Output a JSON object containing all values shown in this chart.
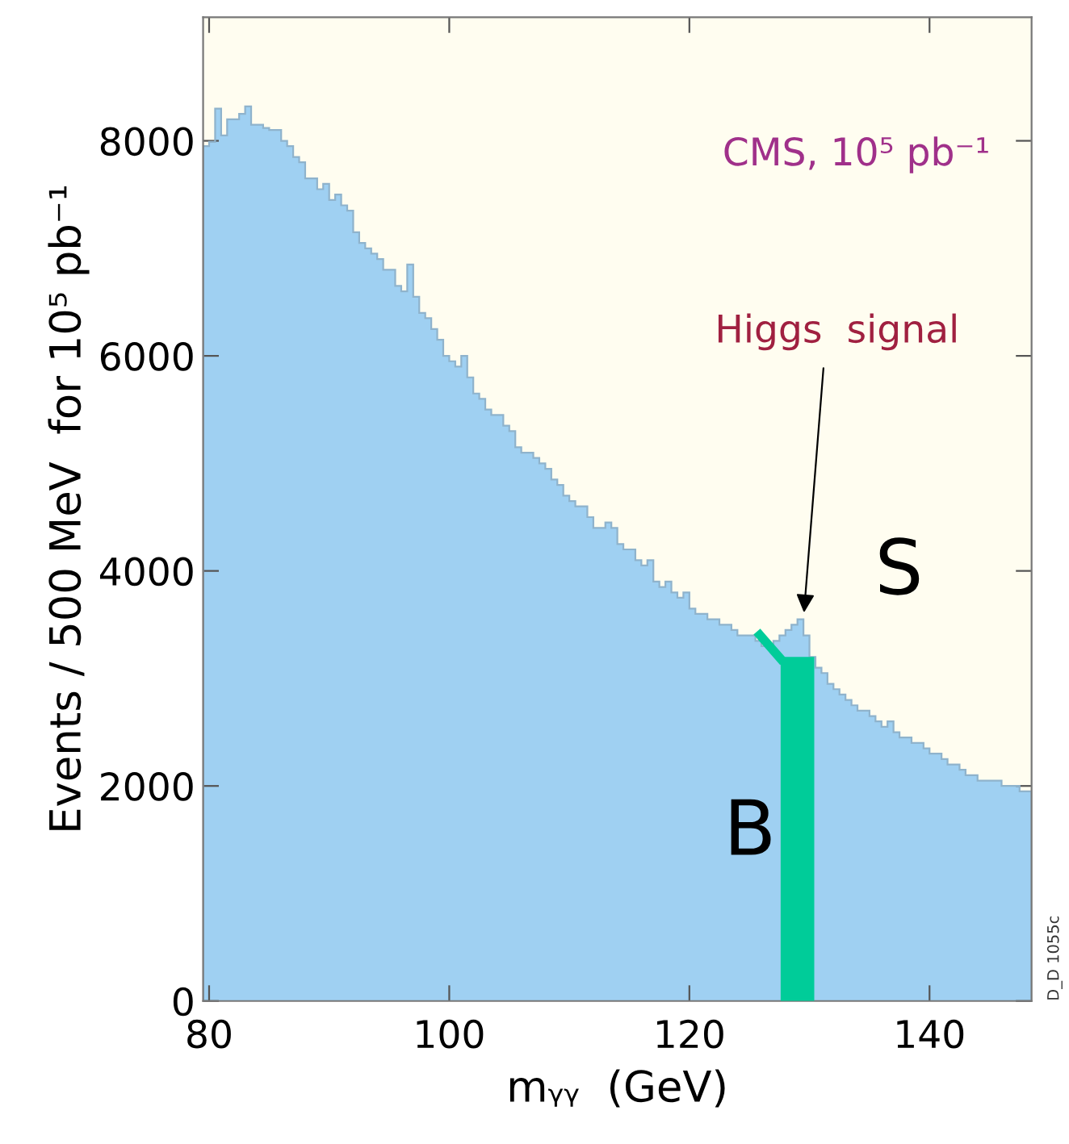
{
  "chart_data": {
    "type": "histogram",
    "xlabel": "mᵧᵧ  (GeV)",
    "ylabel": "Events / 500 MeV  for 10⁵ pb⁻¹",
    "bins": [
      79.5,
      80,
      80.5,
      81,
      81.5,
      82,
      82.5,
      83,
      83.5,
      84,
      84.5,
      85,
      85.5,
      86,
      86.5,
      87,
      87.5,
      88,
      88.5,
      89,
      89.5,
      90,
      90.5,
      91,
      91.5,
      92,
      92.5,
      93,
      93.5,
      94,
      94.5,
      95,
      95.5,
      96,
      96.5,
      97,
      97.5,
      98,
      98.5,
      99,
      99.5,
      100,
      100.5,
      101,
      101.5,
      102,
      102.5,
      103,
      103.5,
      104,
      104.5,
      105,
      105.5,
      106,
      106.5,
      107,
      107.5,
      108,
      108.5,
      109,
      109.5,
      110,
      110.5,
      111,
      111.5,
      112,
      112.5,
      113,
      113.5,
      114,
      114.5,
      115,
      115.5,
      116,
      116.5,
      117,
      117.5,
      118,
      118.5,
      119,
      119.5,
      120,
      120.5,
      121,
      121.5,
      122,
      122.5,
      123,
      123.5,
      124,
      124.5,
      125,
      125.5,
      126,
      126.5,
      127,
      127.5,
      128,
      128.5,
      129,
      129.5,
      130,
      130.5,
      131,
      131.5,
      132,
      132.5,
      133,
      133.5,
      134,
      134.5,
      135,
      135.5,
      136,
      136.5,
      137,
      137.5,
      138,
      138.5,
      139,
      139.5,
      140,
      140.5,
      141,
      141.5,
      142,
      142.5,
      143,
      143.5,
      144,
      144.5,
      145,
      145.5,
      146,
      146.5,
      147,
      147.5,
      148,
      148.5
    ],
    "series": [
      {
        "color": "#9fd0f2",
        "values": [
          7950,
          7990,
          8300,
          8050,
          8200,
          8200,
          8250,
          8320,
          8150,
          8150,
          8120,
          8100,
          8100,
          8000,
          7950,
          7850,
          7800,
          7650,
          7650,
          7550,
          7600,
          7450,
          7500,
          7400,
          7350,
          7150,
          7050,
          7000,
          6950,
          6900,
          6800,
          6800,
          6650,
          6600,
          6850,
          6550,
          6400,
          6350,
          6250,
          6150,
          6000,
          5950,
          5900,
          6000,
          5800,
          5650,
          5600,
          5500,
          5450,
          5450,
          5350,
          5300,
          5150,
          5100,
          5100,
          5050,
          5000,
          4950,
          4850,
          4800,
          4700,
          4650,
          4600,
          4600,
          4500,
          4400,
          4400,
          4450,
          4400,
          4250,
          4200,
          4200,
          4100,
          4050,
          4100,
          3900,
          3850,
          3900,
          3800,
          3750,
          3800,
          3650,
          3600,
          3600,
          3550,
          3550,
          3500,
          3500,
          3450,
          3400,
          3400,
          3400,
          3350,
          3300,
          3300,
          3350,
          3400,
          3450,
          3500,
          3550,
          3400,
          3200,
          3100,
          3050,
          2950,
          2900,
          2850,
          2800,
          2750,
          2700,
          2700,
          2650,
          2600,
          2550,
          2600,
          2500,
          2450,
          2450,
          2400,
          2400,
          2350,
          2300,
          2300,
          2250,
          2200,
          2200,
          2150,
          2100,
          2100,
          2050,
          2050,
          2050,
          2050,
          2000,
          2000,
          2000,
          1950,
          1950
        ]
      },
      {
        "type": "bar",
        "color": "#00cc99",
        "x": [
          129.0
        ],
        "values": [
          3200
        ]
      }
    ],
    "xlim": [
      79.5,
      148.5
    ],
    "ylim": [
      0,
      9150
    ],
    "xticks": [
      80,
      100,
      120,
      140
    ],
    "yticks": [
      0,
      2000,
      4000,
      6000,
      8000
    ],
    "grid": false,
    "annotations": [
      "CMS, 10⁵ pb⁻¹",
      {
        "text": "Higgs  signal",
        "x": 129.5,
        "y": 3550
      },
      "S",
      "B",
      "D_D 1055c"
    ]
  }
}
